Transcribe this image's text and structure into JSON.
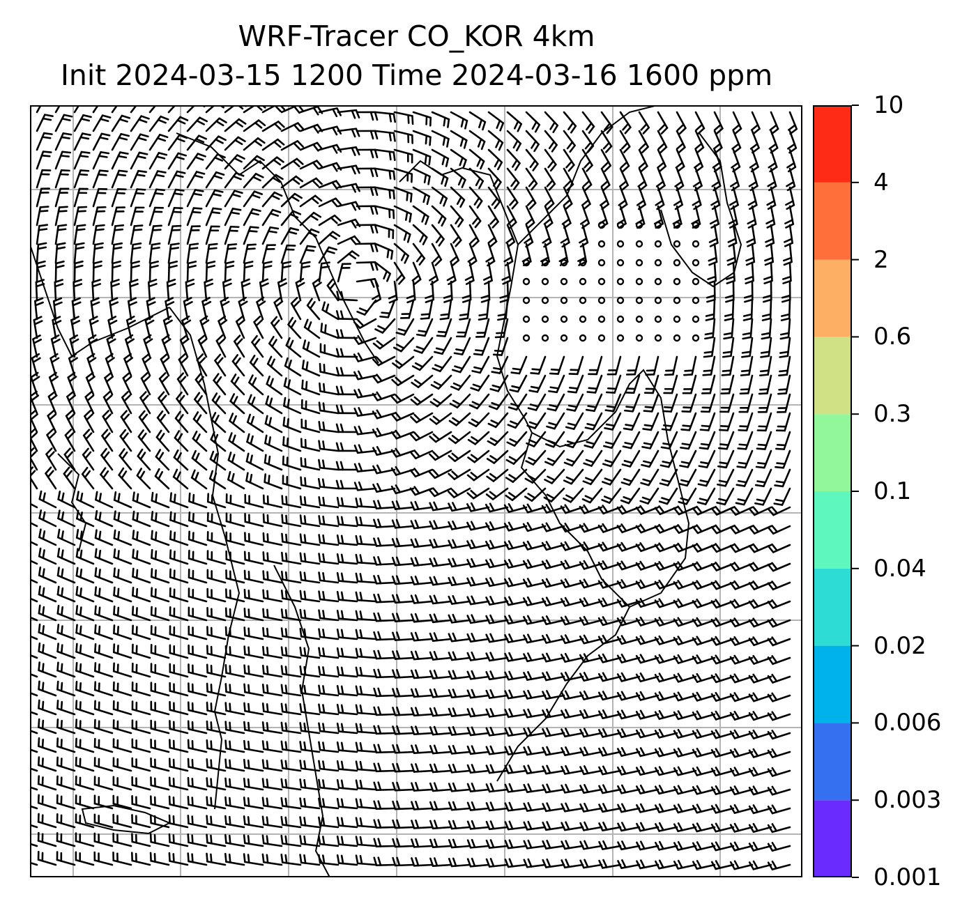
{
  "title": {
    "line1": "WRF-Tracer CO_KOR 4km",
    "line2": "Init 2024-03-15 1200 Time 2024-03-16 1600 ppm"
  },
  "colorbar": {
    "levels": [
      "0.001",
      "0.003",
      "0.006",
      "0.02",
      "0.04",
      "0.1",
      "0.3",
      "0.6",
      "2",
      "4",
      "10"
    ],
    "colors": [
      "#6a2cfc",
      "#3470f0",
      "#00b2ea",
      "#2ddcd4",
      "#5ef7bd",
      "#91f79a",
      "#cfe085",
      "#fdb064",
      "#fe6f3a",
      "#fe2b16"
    ]
  },
  "map": {
    "grid_color": "#b4b4b4",
    "coast_color": "#000000",
    "barb_color": "#000000"
  }
}
